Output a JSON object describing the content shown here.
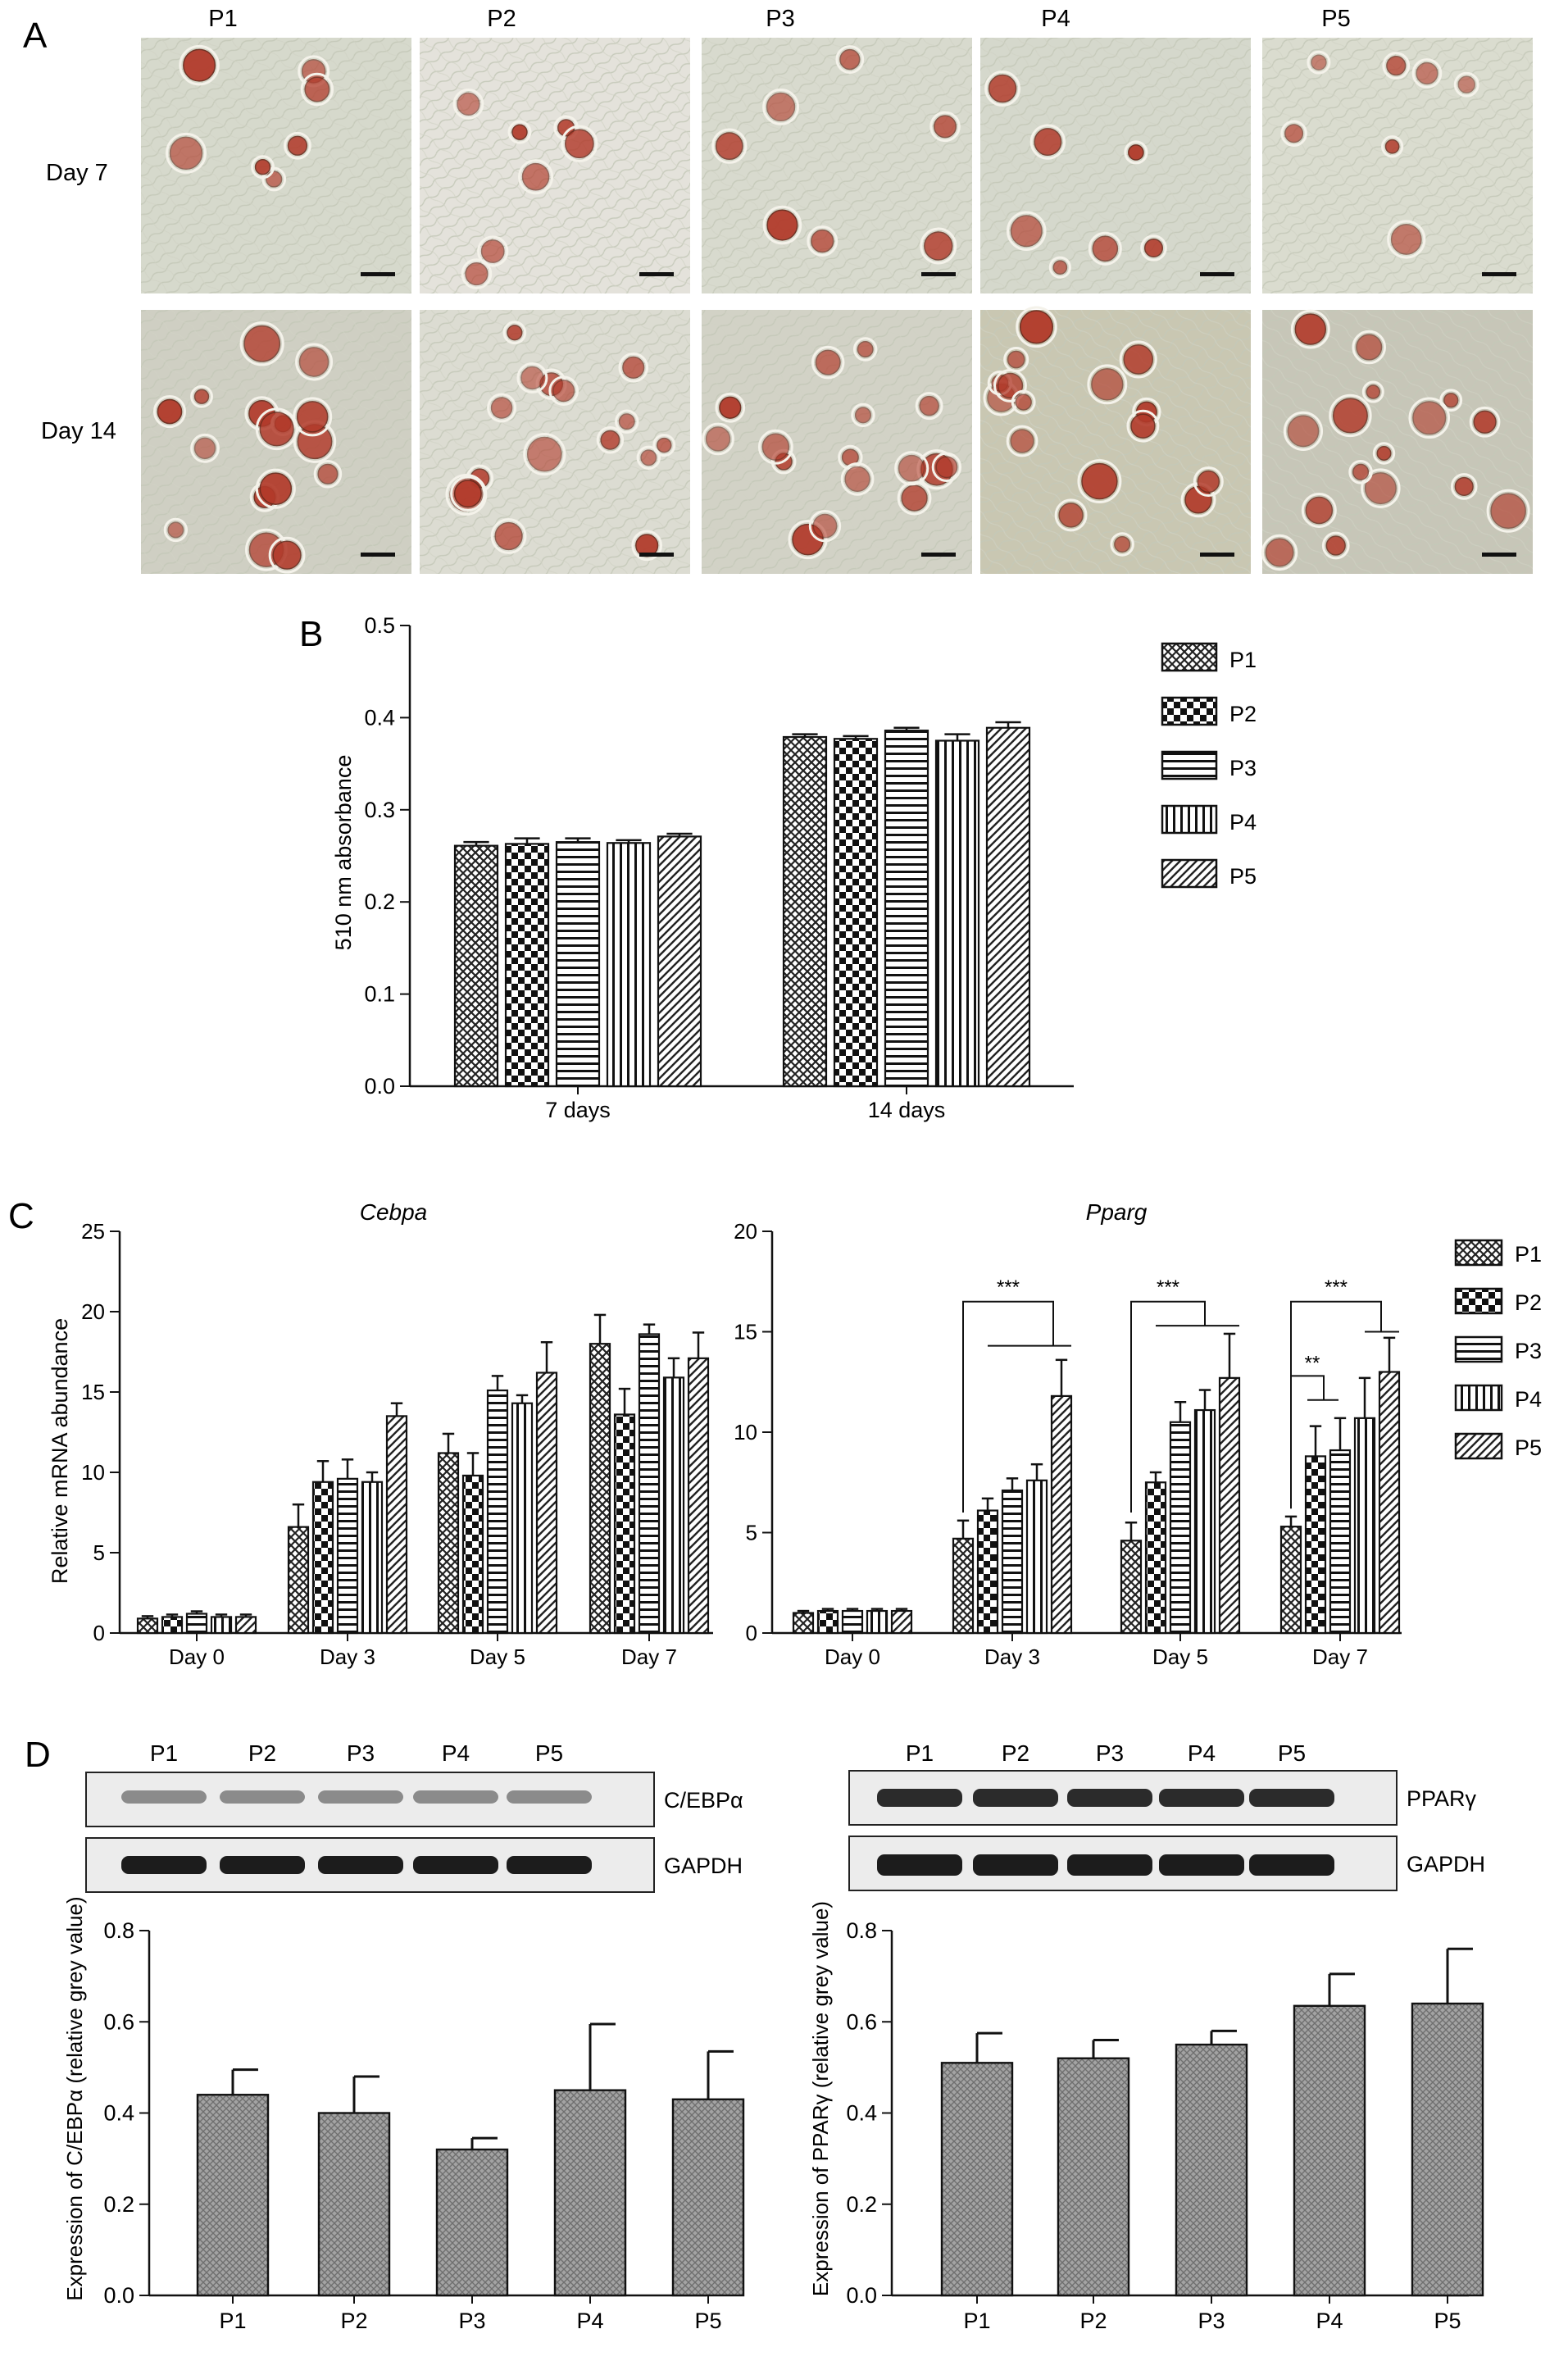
{
  "panel_letters": {
    "a": "A",
    "b": "B",
    "c": "C",
    "d": "D"
  },
  "micrographs": {
    "columns": [
      "P1",
      "P2",
      "P3",
      "P4",
      "P5"
    ],
    "rows": [
      "Day 7",
      "Day 14"
    ]
  },
  "legend_items": [
    "P1",
    "P2",
    "P3",
    "P4",
    "P5"
  ],
  "chart_data": [
    {
      "id": "B",
      "type": "bar",
      "title": "",
      "ylabel": "510 nm absorbance",
      "ylim": [
        0,
        0.5
      ],
      "yticks": [
        "0.0",
        "0.1",
        "0.2",
        "0.3",
        "0.4",
        "0.5"
      ],
      "categories": [
        "7 days",
        "14 days"
      ],
      "series": [
        {
          "name": "P1",
          "values": [
            0.261,
            0.379
          ],
          "errors": [
            0.004,
            0.003
          ]
        },
        {
          "name": "P2",
          "values": [
            0.263,
            0.377
          ],
          "errors": [
            0.006,
            0.003
          ]
        },
        {
          "name": "P3",
          "values": [
            0.265,
            0.386
          ],
          "errors": [
            0.004,
            0.003
          ]
        },
        {
          "name": "P4",
          "values": [
            0.264,
            0.375
          ],
          "errors": [
            0.003,
            0.007
          ]
        },
        {
          "name": "P5",
          "values": [
            0.271,
            0.389
          ],
          "errors": [
            0.003,
            0.006
          ]
        }
      ],
      "legend": "right"
    },
    {
      "id": "C-left",
      "type": "bar",
      "title": "Cebpa",
      "ylabel": "Relative mRNA abundance",
      "ylim": [
        0,
        25
      ],
      "yticks": [
        "0",
        "5",
        "10",
        "15",
        "20",
        "25"
      ],
      "categories": [
        "Day 0",
        "Day 3",
        "Day 5",
        "Day 7"
      ],
      "series": [
        {
          "name": "P1",
          "values": [
            0.9,
            6.6,
            11.2,
            18.0
          ],
          "errors": [
            0.15,
            1.4,
            1.2,
            1.8
          ]
        },
        {
          "name": "P2",
          "values": [
            1.0,
            9.4,
            9.8,
            13.6
          ],
          "errors": [
            0.15,
            1.3,
            1.4,
            1.6
          ]
        },
        {
          "name": "P3",
          "values": [
            1.2,
            9.6,
            15.1,
            18.6
          ],
          "errors": [
            0.15,
            1.2,
            0.9,
            0.6
          ]
        },
        {
          "name": "P4",
          "values": [
            1.0,
            9.4,
            14.3,
            15.9
          ],
          "errors": [
            0.15,
            0.6,
            0.5,
            1.2
          ]
        },
        {
          "name": "P5",
          "values": [
            1.0,
            13.5,
            16.2,
            17.1
          ],
          "errors": [
            0.15,
            0.8,
            1.9,
            1.6
          ]
        }
      ]
    },
    {
      "id": "C-right",
      "type": "bar",
      "title": "Pparg",
      "ylabel": "",
      "ylim": [
        0,
        20
      ],
      "yticks": [
        "0",
        "5",
        "10",
        "15",
        "20"
      ],
      "categories": [
        "Day 0",
        "Day 3",
        "Day 5",
        "Day 7"
      ],
      "series": [
        {
          "name": "P1",
          "values": [
            1.0,
            4.7,
            4.6,
            5.3
          ],
          "errors": [
            0.1,
            0.9,
            0.9,
            0.5
          ]
        },
        {
          "name": "P2",
          "values": [
            1.1,
            6.1,
            7.5,
            8.8
          ],
          "errors": [
            0.1,
            0.6,
            0.5,
            1.5
          ]
        },
        {
          "name": "P3",
          "values": [
            1.1,
            7.1,
            10.5,
            9.1
          ],
          "errors": [
            0.1,
            0.6,
            1.0,
            1.6
          ]
        },
        {
          "name": "P4",
          "values": [
            1.1,
            7.6,
            11.1,
            10.7
          ],
          "errors": [
            0.1,
            0.8,
            1.0,
            2.0
          ]
        },
        {
          "name": "P5",
          "values": [
            1.1,
            11.8,
            12.7,
            13.0
          ],
          "errors": [
            0.1,
            1.8,
            2.2,
            1.7
          ]
        }
      ],
      "significance": [
        {
          "group": "Day 3",
          "label": "***"
        },
        {
          "group": "Day 5",
          "label": "***"
        },
        {
          "group": "Day 7",
          "label": "***"
        },
        {
          "group": "Day 7",
          "label": "**"
        }
      ],
      "legend": "right"
    },
    {
      "id": "D-left",
      "type": "bar",
      "title": "",
      "ylabel": "Expression of C/EBPα (relative grey value)",
      "ylim": [
        0,
        0.8
      ],
      "yticks": [
        "0.0",
        "0.2",
        "0.4",
        "0.6",
        "0.8"
      ],
      "categories": [
        "P1",
        "P2",
        "P3",
        "P4",
        "P5"
      ],
      "values": [
        0.44,
        0.4,
        0.32,
        0.45,
        0.43
      ],
      "errors": [
        0.055,
        0.08,
        0.025,
        0.145,
        0.105
      ]
    },
    {
      "id": "D-right",
      "type": "bar",
      "title": "",
      "ylabel": "Expression of PPARγ (relative grey value)",
      "ylim": [
        0,
        0.8
      ],
      "yticks": [
        "0.0",
        "0.2",
        "0.4",
        "0.6",
        "0.8"
      ],
      "categories": [
        "P1",
        "P2",
        "P3",
        "P4",
        "P5"
      ],
      "values": [
        0.51,
        0.52,
        0.55,
        0.635,
        0.64
      ],
      "errors": [
        0.065,
        0.04,
        0.03,
        0.07,
        0.12
      ]
    }
  ],
  "blots": {
    "left": {
      "lanes": [
        "P1",
        "P2",
        "P3",
        "P4",
        "P5"
      ],
      "protein": "C/EBPα",
      "loading": "GAPDH"
    },
    "right": {
      "lanes": [
        "P1",
        "P2",
        "P3",
        "P4",
        "P5"
      ],
      "protein": "PPARγ",
      "loading": "GAPDH"
    }
  },
  "colors": {
    "background": "#ffffff",
    "ink": "#111111",
    "bar_fill": "#9a9a9a",
    "stain": "#b23a2a"
  }
}
